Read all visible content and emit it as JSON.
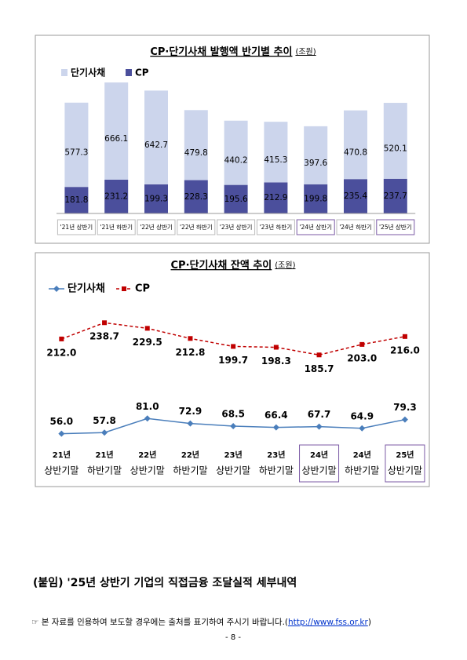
{
  "chart_data": [
    {
      "type": "bar",
      "stacked": true,
      "title": "CP·단기사채 발행액 반기별 추이",
      "unit": "(조원)",
      "categories": [
        "'21년 상반기",
        "'21년 하반기",
        "'22년 상반기",
        "'22년 하반기",
        "'23년 상반기",
        "'23년 하반기",
        "'24년 상반기",
        "'24년 하반기",
        "'25년 상반기"
      ],
      "highlight": [
        6,
        8
      ],
      "series": [
        {
          "name": "단기사채",
          "color": "#ccd5ec",
          "values": [
            577.3,
            666.1,
            642.7,
            479.8,
            440.2,
            415.3,
            397.6,
            470.8,
            520.1
          ]
        },
        {
          "name": "CP",
          "color": "#4b4f9c",
          "values": [
            181.8,
            231.2,
            199.3,
            228.3,
            195.6,
            212.9,
            199.8,
            235.4,
            237.7
          ]
        }
      ]
    },
    {
      "type": "line",
      "title": "CP·단기사채 잔액 추이",
      "unit": "(조원)",
      "categories": [
        [
          "21년",
          "상반기말"
        ],
        [
          "21년",
          "하반기말"
        ],
        [
          "22년",
          "상반기말"
        ],
        [
          "22년",
          "하반기말"
        ],
        [
          "23년",
          "상반기말"
        ],
        [
          "23년",
          "하반기말"
        ],
        [
          "24년",
          "상반기말"
        ],
        [
          "24년",
          "하반기말"
        ],
        [
          "25년",
          "상반기말"
        ]
      ],
      "highlight": [
        6,
        8
      ],
      "series": [
        {
          "name": "단기사채",
          "color": "#4a7ebb",
          "marker": "diamond",
          "dashed": false,
          "values": [
            56.0,
            57.8,
            81.0,
            72.9,
            68.5,
            66.4,
            67.7,
            64.9,
            79.3
          ],
          "value_labels": [
            "56.0",
            "57.8",
            "81.0",
            "72.9",
            "68.5",
            "66.4",
            "67.7",
            "64.9",
            "79.3"
          ]
        },
        {
          "name": "CP",
          "color": "#c00000",
          "marker": "square",
          "dashed": true,
          "values": [
            212.0,
            238.7,
            229.5,
            212.8,
            199.7,
            198.3,
            185.7,
            203.0,
            216.0
          ],
          "value_labels": [
            "212.0",
            "238.7",
            "229.5",
            "212.8",
            "199.7",
            "198.3",
            "185.7",
            "203.0",
            "216.0"
          ]
        }
      ]
    }
  ],
  "document": {
    "appendix": "(붙임) '25년 상반기 기업의 직접금융 조달실적 세부내역",
    "note": "☞ 본 자료를 인용하여 보도할 경우에는 출처를 표기하여 주시기 바랍니다.(",
    "link": "http://www.fss.or.kr",
    "note_end": ")",
    "page": "- 8 -"
  }
}
